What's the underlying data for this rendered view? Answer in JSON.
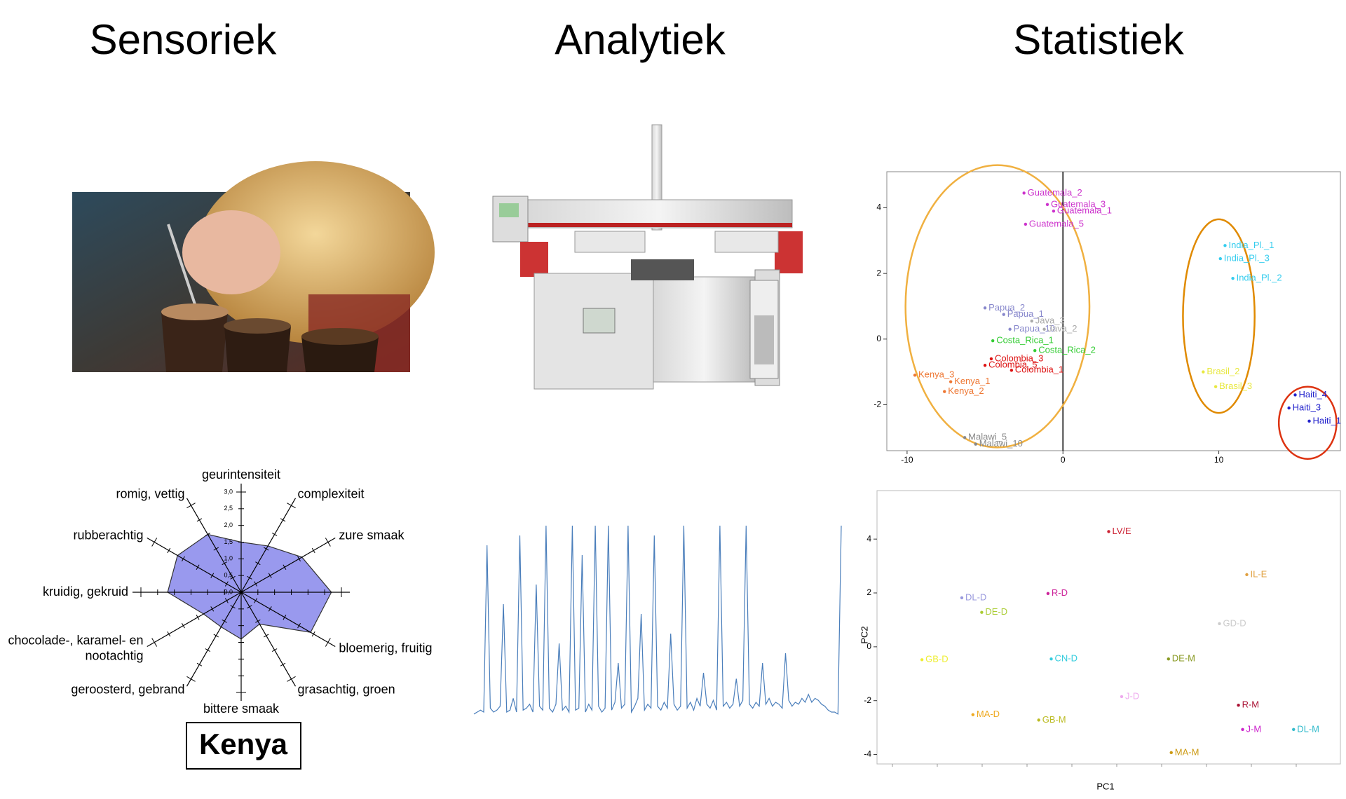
{
  "headers": [
    "Sensoriek",
    "Analytiek",
    "Statistiek"
  ],
  "radar": {
    "type": "radar",
    "axes": [
      [
        "geurintensiteit"
      ],
      [
        "complexiteit"
      ],
      [
        "zure smaak"
      ],
      null,
      [
        "bloemerig, fruitig"
      ],
      [
        "grasachtig, groen"
      ],
      [
        "bittere smaak"
      ],
      [
        "geroosterd, gebrand"
      ],
      [
        "chocolade-, karamel- en",
        "nootachtig"
      ],
      [
        "kruidig, gekruid"
      ],
      [
        "rubberachtig"
      ],
      [
        "romig, vettig"
      ]
    ],
    "values": [
      1.5,
      1.6,
      2.1,
      2.7,
      2.4,
      1.1,
      1.4,
      1.2,
      1.3,
      2.2,
      2.2,
      2.0
    ],
    "rlim": [
      0,
      3
    ],
    "ticks": [
      {
        "value": 0,
        "label": "0,0"
      },
      {
        "value": 0.5,
        "label": "0,5"
      },
      {
        "value": 1,
        "label": "1,0"
      },
      {
        "value": 1.5,
        "label": "1,5"
      },
      {
        "value": 2,
        "label": "2,0"
      },
      {
        "value": 2.5,
        "label": "2,5"
      },
      {
        "value": 3,
        "label": "3,0"
      }
    ],
    "color": "#9999ee",
    "caption": "Kenya"
  },
  "chromatogram": {
    "type": "line",
    "color": "#4a7ebb",
    "values": [
      4,
      5,
      6,
      5,
      90,
      7,
      5,
      6,
      8,
      60,
      5,
      6,
      12,
      5,
      95,
      6,
      7,
      9,
      5,
      70,
      8,
      6,
      100,
      7,
      5,
      9,
      40,
      6,
      8,
      5,
      100,
      6,
      7,
      85,
      5,
      9,
      6,
      100,
      8,
      5,
      7,
      100,
      6,
      10,
      30,
      7,
      9,
      100,
      5,
      8,
      12,
      55,
      6,
      9,
      7,
      95,
      8,
      6,
      10,
      7,
      45,
      9,
      6,
      8,
      100,
      7,
      10,
      6,
      12,
      8,
      25,
      9,
      7,
      11,
      6,
      100,
      8,
      10,
      7,
      9,
      22,
      8,
      11,
      100,
      9,
      7,
      10,
      8,
      30,
      9,
      12,
      8,
      10,
      9,
      7,
      35,
      11,
      8,
      10,
      9,
      12,
      10,
      14,
      10,
      12,
      11,
      9,
      8,
      6,
      5,
      5,
      4,
      100
    ]
  },
  "pca1": {
    "type": "scatter",
    "xlim": [
      -11.3,
      17.8
    ],
    "ylim": [
      -3.4,
      5.1
    ],
    "xticks": [
      -10,
      0,
      10
    ],
    "yticks": [
      -2,
      0,
      2,
      4
    ],
    "points": [
      {
        "label": "Guatemala_2",
        "x": -2.5,
        "y": 4.45,
        "color": "#cc33cc"
      },
      {
        "label": "Guatemala_3",
        "x": -1.0,
        "y": 4.1,
        "color": "#cc33cc"
      },
      {
        "label": "Guatemala_1",
        "x": -0.6,
        "y": 3.9,
        "color": "#cc33cc"
      },
      {
        "label": "Guatemala_5",
        "x": -2.4,
        "y": 3.5,
        "color": "#cc33cc"
      },
      {
        "label": "India_Pl._1",
        "x": 10.4,
        "y": 2.85,
        "color": "#33ccee"
      },
      {
        "label": "India_Pl._3",
        "x": 10.1,
        "y": 2.45,
        "color": "#33ccee"
      },
      {
        "label": "India_Pl._2",
        "x": 10.9,
        "y": 1.85,
        "color": "#33ccee"
      },
      {
        "label": "Papua_2",
        "x": -5.0,
        "y": 0.95,
        "color": "#8888cc"
      },
      {
        "label": "Papua_1",
        "x": -3.8,
        "y": 0.75,
        "color": "#8888cc"
      },
      {
        "label": "Papua_10",
        "x": -3.4,
        "y": 0.3,
        "color": "#8888cc"
      },
      {
        "label": "Java_3",
        "x": -2.0,
        "y": 0.55,
        "color": "#aaaaaa"
      },
      {
        "label": "Java_2",
        "x": -1.2,
        "y": 0.3,
        "color": "#aaaaaa"
      },
      {
        "label": "Costa_Rica_1",
        "x": -4.5,
        "y": -0.05,
        "color": "#33cc33"
      },
      {
        "label": "Costa_Rica_2",
        "x": -1.8,
        "y": -0.35,
        "color": "#33cc33"
      },
      {
        "label": "Colombia_3",
        "x": -4.6,
        "y": -0.6,
        "color": "#dd1111"
      },
      {
        "label": "Colombia_5",
        "x": -5.0,
        "y": -0.8,
        "color": "#dd1111"
      },
      {
        "label": "Colombia_1",
        "x": -3.3,
        "y": -0.95,
        "color": "#dd1111"
      },
      {
        "label": "Kenya_3",
        "x": -9.5,
        "y": -1.1,
        "color": "#ee7733"
      },
      {
        "label": "Kenya_1",
        "x": -7.2,
        "y": -1.3,
        "color": "#ee7733"
      },
      {
        "label": "Kenya_2",
        "x": -7.6,
        "y": -1.6,
        "color": "#ee7733"
      },
      {
        "label": "Brasil_2",
        "x": 9.0,
        "y": -1.0,
        "color": "#e8e840"
      },
      {
        "label": "Brasil_3",
        "x": 9.8,
        "y": -1.45,
        "color": "#e8e840"
      },
      {
        "label": "Haiti_4",
        "x": 14.9,
        "y": -1.7,
        "color": "#2222cc"
      },
      {
        "label": "Haiti_3",
        "x": 14.5,
        "y": -2.1,
        "color": "#2222cc"
      },
      {
        "label": "Haiti_1",
        "x": 15.8,
        "y": -2.5,
        "color": "#2222cc"
      },
      {
        "label": "Malawi_5",
        "x": -6.3,
        "y": -3.0,
        "color": "#888888"
      },
      {
        "label": "Malawi_10",
        "x": -5.6,
        "y": -3.2,
        "color": "#888888"
      }
    ]
  },
  "pca2": {
    "type": "scatter",
    "xlabel": "PC1",
    "ylabel": "PC2",
    "xlim": [
      0,
      10
    ],
    "ylim": [
      -4.35,
      5.8
    ],
    "yticks": [
      -4,
      -2,
      0,
      2,
      4
    ],
    "points": [
      {
        "label": "LV/E",
        "x": 5.0,
        "y": 4.28,
        "color": "#cc2233"
      },
      {
        "label": "IL-E",
        "x": 7.98,
        "y": 2.68,
        "color": "#e0a040"
      },
      {
        "label": "DL-D",
        "x": 1.83,
        "y": 1.82,
        "color": "#9999dd"
      },
      {
        "label": "R-D",
        "x": 3.69,
        "y": 1.98,
        "color": "#cc2299"
      },
      {
        "label": "DE-D",
        "x": 2.26,
        "y": 1.28,
        "color": "#aacc33"
      },
      {
        "label": "GD-D",
        "x": 7.39,
        "y": 0.86,
        "color": "#cccccc"
      },
      {
        "label": "GB-D",
        "x": 0.97,
        "y": -0.48,
        "color": "#eeee33"
      },
      {
        "label": "CN-D",
        "x": 3.76,
        "y": -0.45,
        "color": "#33ccdd"
      },
      {
        "label": "DE-M",
        "x": 6.29,
        "y": -0.45,
        "color": "#889922"
      },
      {
        "label": "J-D",
        "x": 5.28,
        "y": -1.85,
        "color": "#eeaaee"
      },
      {
        "label": "R-M",
        "x": 7.8,
        "y": -2.17,
        "color": "#aa1133"
      },
      {
        "label": "MA-D",
        "x": 2.07,
        "y": -2.52,
        "color": "#eeaa22"
      },
      {
        "label": "GB-M",
        "x": 3.49,
        "y": -2.72,
        "color": "#bbbb22"
      },
      {
        "label": "J-M",
        "x": 7.89,
        "y": -3.07,
        "color": "#cc22cc"
      },
      {
        "label": "DL-M",
        "x": 8.99,
        "y": -3.07,
        "color": "#33bbcc"
      },
      {
        "label": "MA-M",
        "x": 6.35,
        "y": -3.93,
        "color": "#cc9911"
      }
    ]
  }
}
